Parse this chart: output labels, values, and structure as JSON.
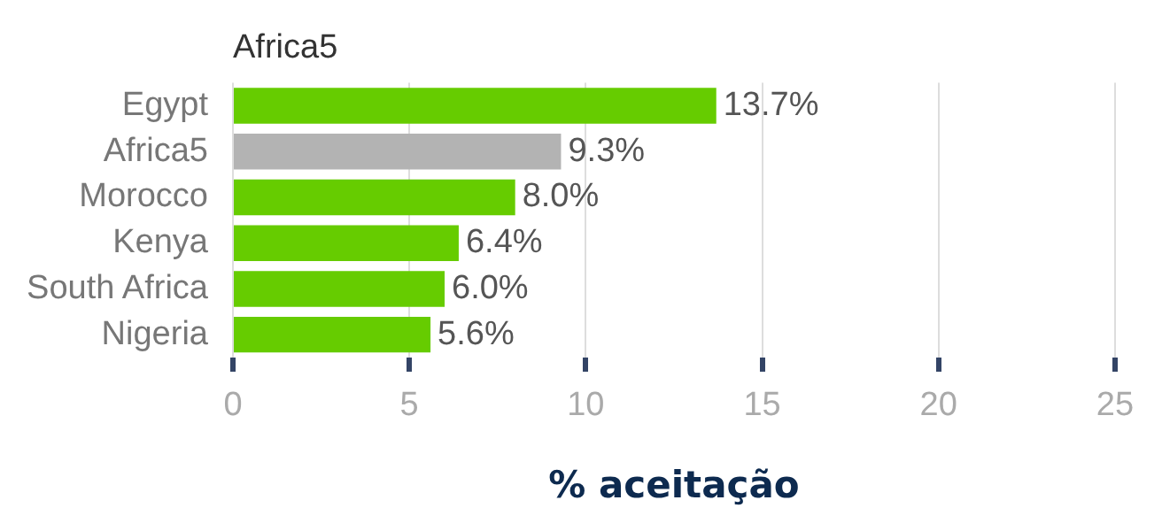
{
  "chart_data": {
    "type": "bar",
    "orientation": "horizontal",
    "title": "Africa5",
    "xlabel": "% aceitação",
    "categories": [
      "Egypt",
      "Africa5",
      "Morocco",
      "Kenya",
      "South Africa",
      "Nigeria"
    ],
    "values": [
      13.7,
      9.3,
      8.0,
      6.4,
      6.0,
      5.6
    ],
    "colors": [
      "#66cc00",
      "#b3b3b3",
      "#66cc00",
      "#66cc00",
      "#66cc00",
      "#66cc00"
    ],
    "value_labels": [
      "13.7%",
      "9.3%",
      "8.0%",
      "6.4%",
      "6.0%",
      "5.6%"
    ],
    "xlim": [
      0,
      25
    ],
    "xticks": [
      0,
      5,
      10,
      15,
      20,
      25
    ],
    "grid": "x",
    "legend": false
  }
}
